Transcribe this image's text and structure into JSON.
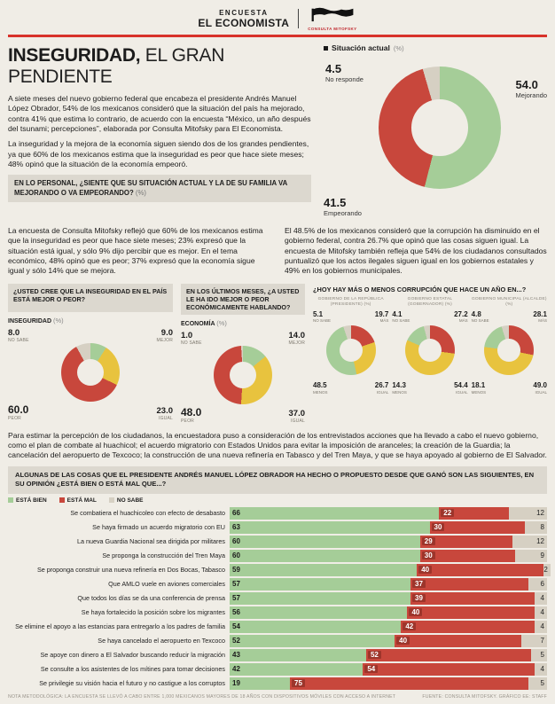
{
  "page": {
    "masthead": {
      "kicker": "ENCUESTA",
      "brand": "EL ECONOMISTA",
      "logo_name": "CONSULTA MITOFSKY"
    },
    "headline": {
      "strong": "INSEGURIDAD,",
      "rest": " EL GRAN PENDIENTE"
    },
    "intro_p1": "A siete meses del nuevo gobierno federal que encabeza el presidente Andrés Manuel López Obrador, 54% de los mexicanos consideró que la situación del país ha mejorado, contra 41% que estima lo contrario, de acuerdo con la encuesta “México, un año después del tsunami; percepciones”, elaborada por Consulta Mitofsky para El Economista.",
    "intro_p2": "La inseguridad y la mejora de la economía siguen siendo dos de los grandes pendientes, ya que 60% de los mexicanos estima que la inseguridad es peor que hace siete meses; 48% opinó que la situación de la economía empeoró.",
    "q_personal": "EN LO PERSONAL, ¿SIENTE QUE SU SITUACIÓN ACTUAL Y LA DE SU FAMILIA VA MEJORANDO O VA EMPEORANDO?",
    "pct": "(%)",
    "mid_left": "La encuesta de Consulta Mitofsky reflejó que 60% de los mexicanos estima que la inseguridad es peor que hace siete meses; 23% expresó que la situación está igual, y sólo 9% dijo percibir que es mejor. En el tema económico, 48% opinó que es peor; 37% expresó que la economía sigue igual y sólo 14% que se mejora.",
    "mid_right": "El 48.5% de los mexicanos consideró que la corrupción ha disminuido en el gobierno federal, contra 26.7% que opinó que las cosas siguen igual. La encuesta de Mitofsky también refleja que 54% de los ciudadanos consultados puntualizó que los actos ilegales siguen igual en los gobiernos estatales y 49% en los gobiernos municipales.",
    "q_inseguridad": "¿USTED CREE QUE LA INSEGURIDAD EN EL PAÍS ESTÁ MEJOR O PEOR?",
    "q_economia": "EN LOS ÚLTIMOS MESES, ¿A USTED LE HA IDO MEJOR O PEOR ECONÓMICAMENTE HABLANDO?",
    "q_corrupcion": "¿HOY HAY MÁS O MENOS CORRUPCIÓN QUE HACE UN AÑO EN...?",
    "bottom_paragraph": "Para estimar la percepción de los ciudadanos, la encuestadora puso a consideración de los entrevistados acciones que ha llevado a cabo el nuevo gobierno, como el plan de combate al huachicol; el acuerdo migratorio con Estados Unidos para evitar la imposición de aranceles; la creación de la Guardia; la cancelación del aeropuerto de Texcoco; la construcción de una nueva refinería en Tabasco y del Tren Maya, y que se haya apoyado al gobierno de El Salvador.",
    "bars_header": "ALGUNAS DE LAS COSAS QUE EL PRESIDENTE ANDRÉS MANUEL LÓPEZ OBRADOR HA HECHO O PROPUESTO DESDE QUE GANÓ SON LAS SIGUIENTES, EN SU OPINIÓN ¿ESTÁ BIEN O ESTÁ MAL QUE...?",
    "footer_left": "NOTA METODOLÓGICA: LA ENCUESTA SE LLEVÓ A CABO ENTRE 1,000 MEXICANOS MAYORES DE 18 AÑOS CON DISPOSITIVOS MÓVILES CON ACCESO A INTERNET",
    "footer_right": "FUENTE: CONSULTA MITOFSKY. GRÁFICO EE: STAFF"
  },
  "colors": {
    "bg": "#f0ede6",
    "hole": "#f0ede6",
    "green": "#a5cd98",
    "red": "#c8473c",
    "red_dark": "#9d352b",
    "yellow": "#e8c33e",
    "gray": "#d6d0c3",
    "accent": "#d8322a",
    "boxgray": "#dcd8cf"
  },
  "chart_data": [
    {
      "id": "situacion",
      "type": "pie",
      "title": "Situación actual",
      "unit": "(%)",
      "slices": [
        {
          "label": "Mejorando",
          "value": 54.0,
          "color": "green",
          "pos": "r",
          "big": true
        },
        {
          "label": "Empeorando",
          "value": 41.5,
          "color": "red",
          "pos": "bl",
          "big": true
        },
        {
          "label": "No responde",
          "value": 4.5,
          "color": "gray",
          "pos": "tl",
          "big": true
        }
      ]
    },
    {
      "id": "inseguridad",
      "type": "pie",
      "title": "INSEGURIDAD",
      "unit": "(%)",
      "slices": [
        {
          "label": "MEJOR",
          "value": 9.0,
          "color": "green",
          "pos": "tr"
        },
        {
          "label": "IGUAL",
          "value": 23.0,
          "color": "yellow",
          "pos": "br"
        },
        {
          "label": "PEOR",
          "value": 60.0,
          "color": "red",
          "pos": "bl",
          "big": true
        },
        {
          "label": "NO SABE",
          "value": 8.0,
          "color": "gray",
          "pos": "tl"
        }
      ]
    },
    {
      "id": "economia",
      "type": "pie",
      "title": "ECONOMÍA",
      "unit": "(%)",
      "slices": [
        {
          "label": "MEJOR",
          "value": 14.0,
          "color": "green",
          "pos": "tr"
        },
        {
          "label": "IGUAL",
          "value": 37.0,
          "color": "yellow",
          "pos": "br"
        },
        {
          "label": "PEOR",
          "value": 48.0,
          "color": "red",
          "pos": "bl",
          "big": true
        },
        {
          "label": "NO SABE",
          "value": 1.0,
          "color": "gray",
          "pos": "tl"
        }
      ]
    },
    {
      "id": "gob_republica",
      "type": "pie",
      "title": "GOBIERNO DE LA REPÚBLICA (PRESIDENTE)",
      "unit": "(%)",
      "slices": [
        {
          "label": "MÁS",
          "value": 19.7,
          "color": "red",
          "pos": "tr"
        },
        {
          "label": "IGUAL",
          "value": 26.7,
          "color": "yellow",
          "pos": "br"
        },
        {
          "label": "MENOS",
          "value": 48.5,
          "color": "green",
          "pos": "bl"
        },
        {
          "label": "NO SABE",
          "value": 5.1,
          "color": "gray",
          "pos": "tl"
        }
      ]
    },
    {
      "id": "gob_estatal",
      "type": "pie",
      "title": "GOBIERNO ESTATAL (GOBERNADOR)",
      "unit": "(%)",
      "slices": [
        {
          "label": "MÁS",
          "value": 27.2,
          "color": "red",
          "pos": "tr"
        },
        {
          "label": "IGUAL",
          "value": 54.4,
          "color": "yellow",
          "pos": "br"
        },
        {
          "label": "MENOS",
          "value": 14.3,
          "color": "green",
          "pos": "bl"
        },
        {
          "label": "NO SABE",
          "value": 4.1,
          "color": "gray",
          "pos": "tl"
        }
      ]
    },
    {
      "id": "gob_municipal",
      "type": "pie",
      "title": "GOBIERNO MUNICIPAL (ALCALDE)",
      "unit": "(%)",
      "slices": [
        {
          "label": "MÁS",
          "value": 28.1,
          "color": "red",
          "pos": "tr"
        },
        {
          "label": "IGUAL",
          "value": 49.0,
          "color": "yellow",
          "pos": "br"
        },
        {
          "label": "MENOS",
          "value": 18.1,
          "color": "green",
          "pos": "bl"
        },
        {
          "label": "NO SABE",
          "value": 4.8,
          "color": "gray",
          "pos": "tl"
        }
      ]
    },
    {
      "id": "opiniones",
      "type": "bar",
      "stacked": true,
      "xlim": [
        0,
        100
      ],
      "legend": [
        "ESTÁ BIEN",
        "ESTÁ MAL",
        "NO SABE"
      ],
      "categories": [
        "Se combatiera el huachicoleo con efecto de desabasto",
        "Se haya firmado un acuerdo migratorio con EU",
        "La nueva Guardia Nacional sea dirigida por militares",
        "Se proponga la construcción del Tren Maya",
        "Se proponga construir una nueva refinería en Dos Bocas, Tabasco",
        "Que AMLO vuele en aviones comerciales",
        "Que todos los días se da una conferencia de prensa",
        "Se haya fortalecido la posición sobre los migrantes",
        "Se elimine el apoyo a las estancias para entregarlo a los padres de familia",
        "Se haya cancelado el aeropuerto en Texcoco",
        "Se apoye con dinero a El Salvador buscando reducir la migración",
        "Se consulte a los asistentes de los mítines para tomar decisiones",
        "Se privilegie su visión hacia el futuro y no castigue a los corruptos"
      ],
      "series": [
        {
          "name": "ESTÁ BIEN",
          "color": "green",
          "values": [
            66,
            63,
            60,
            60,
            59,
            57,
            57,
            56,
            54,
            52,
            43,
            42,
            19
          ]
        },
        {
          "name": "ESTÁ MAL",
          "color": "red",
          "values": [
            22,
            30,
            29,
            30,
            40,
            37,
            39,
            40,
            42,
            40,
            52,
            54,
            75
          ]
        },
        {
          "name": "NO SABE",
          "color": "gray",
          "values": [
            12,
            8,
            12,
            9,
            2,
            6,
            4,
            4,
            4,
            7,
            5,
            4,
            5
          ]
        }
      ]
    }
  ]
}
